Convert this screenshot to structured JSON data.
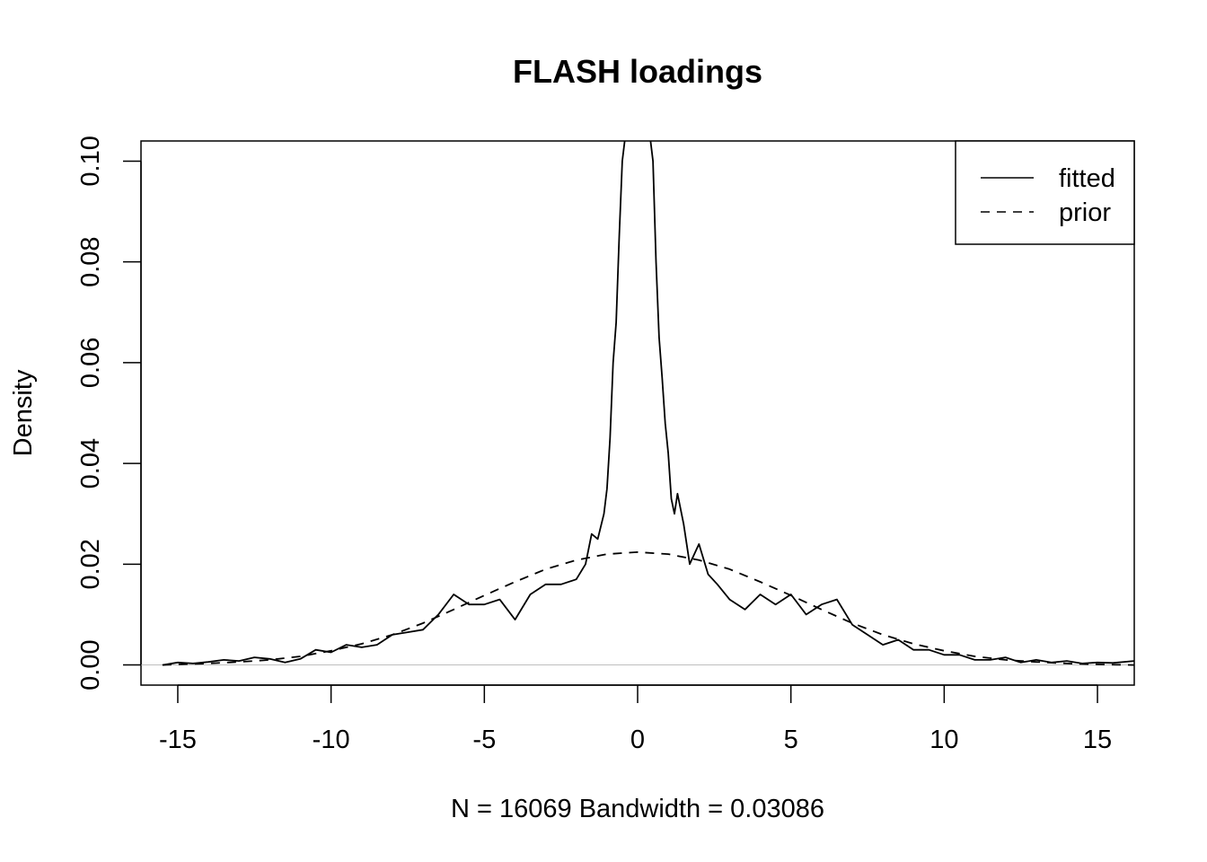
{
  "chart_data": {
    "type": "line",
    "title": "FLASH loadings",
    "xlabel": "N = 16069   Bandwidth = 0.03086",
    "ylabel": "Density",
    "xlim": [
      -16.2,
      16.2
    ],
    "ylim": [
      -0.004,
      0.104
    ],
    "x_ticks": [
      -15,
      -10,
      -5,
      0,
      5,
      10,
      15
    ],
    "x_tick_labels": [
      "-15",
      "-10",
      "-5",
      "0",
      "5",
      "10",
      "15"
    ],
    "y_ticks": [
      0.0,
      0.02,
      0.04,
      0.06,
      0.08,
      0.1
    ],
    "y_tick_labels": [
      "0.00",
      "0.02",
      "0.04",
      "0.06",
      "0.08",
      "0.10"
    ],
    "grid": false,
    "legend": {
      "position": "top-right",
      "entries": [
        "fitted",
        "prior"
      ]
    },
    "series": [
      {
        "name": "fitted",
        "line_style": "solid",
        "x": [
          -15.5,
          -15.0,
          -14.5,
          -14.0,
          -13.5,
          -13.0,
          -12.5,
          -12.0,
          -11.5,
          -11.0,
          -10.5,
          -10.0,
          -9.5,
          -9.0,
          -8.5,
          -8.0,
          -7.5,
          -7.0,
          -6.5,
          -6.0,
          -5.5,
          -5.0,
          -4.5,
          -4.0,
          -3.5,
          -3.0,
          -2.5,
          -2.0,
          -1.7,
          -1.5,
          -1.3,
          -1.1,
          -1.0,
          -0.9,
          -0.8,
          -0.7,
          -0.6,
          -0.5,
          -0.4,
          0.4,
          0.5,
          0.6,
          0.7,
          0.8,
          0.9,
          1.0,
          1.1,
          1.2,
          1.3,
          1.5,
          1.7,
          2.0,
          2.3,
          2.6,
          3.0,
          3.5,
          4.0,
          4.5,
          5.0,
          5.5,
          6.0,
          6.5,
          7.0,
          7.5,
          8.0,
          8.5,
          9.0,
          9.5,
          10.0,
          10.5,
          11.0,
          11.5,
          12.0,
          12.5,
          13.0,
          13.5,
          14.0,
          14.5,
          15.0,
          15.5,
          16.2
        ],
        "y": [
          0.0,
          0.0005,
          0.0003,
          0.0006,
          0.001,
          0.0008,
          0.0015,
          0.0012,
          0.0005,
          0.0012,
          0.003,
          0.0025,
          0.004,
          0.0035,
          0.004,
          0.006,
          0.0065,
          0.007,
          0.01,
          0.014,
          0.012,
          0.012,
          0.013,
          0.009,
          0.014,
          0.016,
          0.016,
          0.017,
          0.02,
          0.026,
          0.025,
          0.03,
          0.035,
          0.045,
          0.06,
          0.068,
          0.085,
          0.1,
          0.105,
          0.105,
          0.1,
          0.08,
          0.065,
          0.057,
          0.048,
          0.042,
          0.033,
          0.03,
          0.034,
          0.028,
          0.02,
          0.024,
          0.018,
          0.016,
          0.013,
          0.011,
          0.014,
          0.012,
          0.014,
          0.01,
          0.012,
          0.013,
          0.008,
          0.006,
          0.004,
          0.005,
          0.003,
          0.003,
          0.002,
          0.002,
          0.001,
          0.001,
          0.0015,
          0.0005,
          0.001,
          0.0005,
          0.0008,
          0.0003,
          0.0005,
          0.0004,
          0.0008
        ]
      },
      {
        "name": "prior",
        "line_style": "dashed",
        "x": [
          -15.5,
          -15.0,
          -14.0,
          -13.0,
          -12.0,
          -11.0,
          -10.0,
          -9.0,
          -8.0,
          -7.0,
          -6.0,
          -5.0,
          -4.0,
          -3.0,
          -2.0,
          -1.0,
          0.0,
          1.0,
          2.0,
          3.0,
          4.0,
          5.0,
          6.0,
          7.0,
          8.0,
          9.0,
          10.0,
          11.0,
          12.0,
          13.0,
          14.0,
          15.0,
          16.2
        ],
        "y": [
          0.0,
          0.0001,
          0.0003,
          0.0006,
          0.001,
          0.0017,
          0.0028,
          0.0042,
          0.006,
          0.0083,
          0.011,
          0.0138,
          0.0165,
          0.019,
          0.0208,
          0.022,
          0.0224,
          0.022,
          0.0208,
          0.019,
          0.0165,
          0.0138,
          0.011,
          0.0083,
          0.006,
          0.0042,
          0.0028,
          0.0017,
          0.001,
          0.0006,
          0.0003,
          0.0001,
          0.0
        ]
      }
    ]
  }
}
